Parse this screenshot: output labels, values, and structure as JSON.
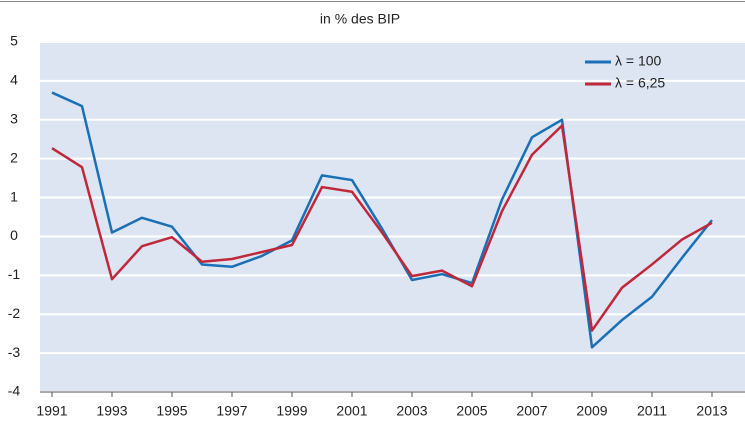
{
  "chart_data": {
    "type": "line",
    "title": "in % des BIP",
    "x": [
      1991,
      1992,
      1993,
      1994,
      1995,
      1996,
      1997,
      1998,
      1999,
      2000,
      2001,
      2002,
      2003,
      2004,
      2005,
      2006,
      2007,
      2008,
      2009,
      2010,
      2011,
      2012,
      2013
    ],
    "series": [
      {
        "name": "λ = 100",
        "color": "#1a6fb5",
        "values": [
          3.7,
          3.35,
          0.1,
          0.48,
          0.25,
          -0.72,
          -0.78,
          -0.5,
          -0.1,
          1.57,
          1.45,
          0.2,
          -1.12,
          -0.97,
          -1.2,
          0.95,
          2.55,
          3.0,
          -2.85,
          -2.15,
          -1.55,
          -0.55,
          0.42
        ]
      },
      {
        "name": "λ = 6,25",
        "color": "#c0283a",
        "values": [
          2.27,
          1.78,
          -1.1,
          -0.25,
          -0.02,
          -0.65,
          -0.58,
          -0.4,
          -0.22,
          1.27,
          1.15,
          0.1,
          -1.02,
          -0.88,
          -1.28,
          0.65,
          2.1,
          2.85,
          -2.42,
          -1.32,
          -0.72,
          -0.08,
          0.35
        ]
      }
    ],
    "xlim": [
      1990.6,
      2014.1
    ],
    "xticks": [
      1991,
      1993,
      1995,
      1997,
      1999,
      2001,
      2003,
      2005,
      2007,
      2009,
      2011,
      2013
    ],
    "ylim": [
      -4,
      5
    ],
    "yticks": [
      -4,
      -3,
      -2,
      -1,
      0,
      1,
      2,
      3,
      4,
      5
    ],
    "grid": true,
    "legend": "top-right"
  }
}
